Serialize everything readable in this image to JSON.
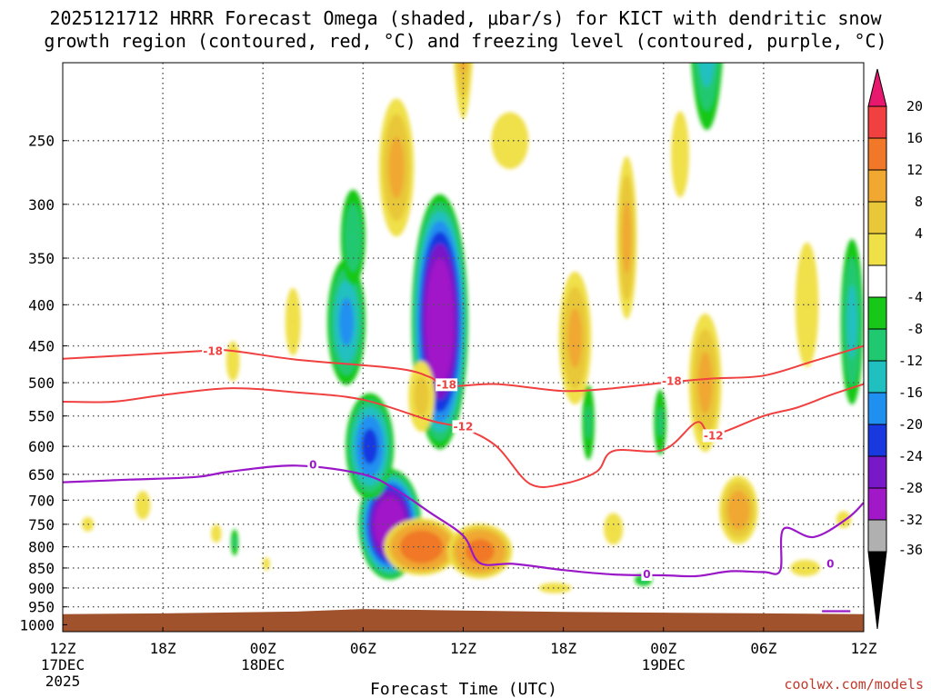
{
  "chart_data": {
    "type": "heatmap",
    "title_line1": "2025121712 HRRR Forecast Omega (shaded, μbar/s) for KICT with dendritic snow",
    "title_line2": "growth region (contoured, red, °C) and freezing level (contoured, purple, °C)",
    "xlabel": "Forecast Time (UTC)",
    "credit": "coolwx.com/models",
    "x_ticks": [
      {
        "hour": 0,
        "label": "12Z",
        "sub1": "17DEC",
        "sub2": "2025"
      },
      {
        "hour": 6,
        "label": "18Z",
        "sub1": "",
        "sub2": ""
      },
      {
        "hour": 12,
        "label": "00Z",
        "sub1": "18DEC",
        "sub2": ""
      },
      {
        "hour": 18,
        "label": "06Z",
        "sub1": "",
        "sub2": ""
      },
      {
        "hour": 24,
        "label": "12Z",
        "sub1": "",
        "sub2": ""
      },
      {
        "hour": 30,
        "label": "18Z",
        "sub1": "",
        "sub2": ""
      },
      {
        "hour": 36,
        "label": "00Z",
        "sub1": "19DEC",
        "sub2": ""
      },
      {
        "hour": 42,
        "label": "06Z",
        "sub1": "",
        "sub2": ""
      },
      {
        "hour": 48,
        "label": "12Z",
        "sub1": "",
        "sub2": ""
      }
    ],
    "xlim": [
      0,
      48
    ],
    "y_ticks": [
      250,
      300,
      350,
      400,
      450,
      500,
      550,
      600,
      650,
      700,
      750,
      800,
      850,
      900,
      950,
      1000
    ],
    "ylim_hPa": [
      200,
      1020
    ],
    "y_scale": "log-pressure",
    "grid": true,
    "colorbar": {
      "labels": [
        "20",
        "16",
        "12",
        "8",
        "4",
        "-4",
        "-8",
        "-12",
        "-16",
        "-20",
        "-24",
        "-28",
        "-32",
        "-36"
      ],
      "colors": [
        "#e8186e",
        "#f04040",
        "#f07828",
        "#f0a830",
        "#e8c838",
        "#f0e048",
        "#ffffff",
        "#18c818",
        "#20c870",
        "#20c0c0",
        "#2090f0",
        "#1838e0",
        "#7818c8",
        "#a018c8",
        "#b0b0b0",
        "#000000"
      ]
    },
    "colors": {
      "terrain": "#a0522d",
      "dgz_line": "#f04040",
      "freezing_line": "#9a18c8"
    },
    "dgz_contours": [
      {
        "name": "-18",
        "label": "-18",
        "points": [
          [
            0,
            467
          ],
          [
            4,
            462
          ],
          [
            8,
            457
          ],
          [
            10,
            456
          ],
          [
            14,
            468
          ],
          [
            20,
            480
          ],
          [
            22,
            492
          ],
          [
            23,
            505
          ],
          [
            26,
            502
          ],
          [
            30,
            512
          ],
          [
            33,
            508
          ],
          [
            36,
            500
          ],
          [
            39,
            494
          ],
          [
            42,
            490
          ],
          [
            45,
            470
          ],
          [
            48,
            450
          ]
        ]
      },
      {
        "name": "-12",
        "label": "-12",
        "points": [
          [
            0,
            528
          ],
          [
            3,
            528
          ],
          [
            6,
            518
          ],
          [
            10,
            508
          ],
          [
            14,
            514
          ],
          [
            18,
            525
          ],
          [
            22,
            557
          ],
          [
            24,
            570
          ],
          [
            26,
            600
          ],
          [
            28,
            668
          ],
          [
            30,
            668
          ],
          [
            32,
            645
          ],
          [
            33,
            608
          ],
          [
            36,
            606
          ],
          [
            38,
            560
          ],
          [
            39,
            580
          ],
          [
            42,
            550
          ],
          [
            44,
            537
          ],
          [
            46,
            518
          ],
          [
            48,
            502
          ]
        ]
      }
    ],
    "dgz_label_points": [
      {
        "text": "-18",
        "hour": 9,
        "p": 457
      },
      {
        "text": "-18",
        "hour": 23,
        "p": 503
      },
      {
        "text": "-18",
        "hour": 36.5,
        "p": 498
      },
      {
        "text": "-12",
        "hour": 24,
        "p": 567
      },
      {
        "text": "-12",
        "hour": 39,
        "p": 582
      }
    ],
    "freezing_contour": {
      "label": "0",
      "points": [
        [
          0,
          665
        ],
        [
          4,
          660
        ],
        [
          8,
          655
        ],
        [
          10,
          645
        ],
        [
          14,
          634
        ],
        [
          18,
          650
        ],
        [
          20,
          680
        ],
        [
          22,
          725
        ],
        [
          24,
          775
        ],
        [
          25,
          838
        ],
        [
          27,
          840
        ],
        [
          30,
          855
        ],
        [
          33,
          866
        ],
        [
          36,
          868
        ],
        [
          38,
          870
        ],
        [
          40,
          858
        ],
        [
          42,
          860
        ],
        [
          43,
          856
        ],
        [
          43.2,
          760
        ],
        [
          45,
          778
        ],
        [
          47,
          738
        ],
        [
          48,
          705
        ]
      ]
    },
    "freezing_label_points": [
      {
        "text": "0",
        "hour": 15,
        "p": 633
      },
      {
        "text": "0",
        "hour": 35,
        "p": 866
      },
      {
        "text": "0",
        "hour": 46,
        "p": 840
      }
    ],
    "terrain_top_hPa": [
      [
        0,
        970
      ],
      [
        6,
        968
      ],
      [
        14,
        963
      ],
      [
        18,
        956
      ],
      [
        24,
        960
      ],
      [
        30,
        964
      ],
      [
        36,
        966
      ],
      [
        42,
        968
      ],
      [
        48,
        970
      ]
    ],
    "omega_blobs": [
      {
        "hour": 19.6,
        "p": 750,
        "dh": 2.0,
        "dp": 250,
        "value": -36
      },
      {
        "hour": 18.4,
        "p": 600,
        "dh": 1.6,
        "dp": 200,
        "value": -22
      },
      {
        "hour": 17.0,
        "p": 420,
        "dh": 1.3,
        "dp": 170,
        "value": -18
      },
      {
        "hour": 17.4,
        "p": 330,
        "dh": 0.9,
        "dp": 110,
        "value": -12
      },
      {
        "hour": 22.6,
        "p": 420,
        "dh": 1.8,
        "dp": 310,
        "value": -36
      },
      {
        "hour": 38.6,
        "p": 170,
        "dh": 1.2,
        "dp": 130,
        "value": -18
      },
      {
        "hour": 47.3,
        "p": 420,
        "dh": 0.8,
        "dp": 230,
        "value": -14
      },
      {
        "hour": 31.5,
        "p": 560,
        "dh": 0.5,
        "dp": 160,
        "value": -9
      },
      {
        "hour": 35.8,
        "p": 560,
        "dh": 0.5,
        "dp": 140,
        "value": -9
      },
      {
        "hour": 10.3,
        "p": 790,
        "dh": 0.3,
        "dp": 80,
        "value": -9
      },
      {
        "hour": 34.8,
        "p": 880,
        "dh": 0.7,
        "dp": 40,
        "value": -9
      },
      {
        "hour": 21.5,
        "p": 800,
        "dh": 2.6,
        "dp": 150,
        "value": 16
      },
      {
        "hour": 25.0,
        "p": 810,
        "dh": 2.3,
        "dp": 150,
        "value": 14
      },
      {
        "hour": 20.0,
        "p": 270,
        "dh": 1.4,
        "dp": 140,
        "value": 9
      },
      {
        "hour": 21.5,
        "p": 520,
        "dh": 1.2,
        "dp": 160,
        "value": 7
      },
      {
        "hour": 24.0,
        "p": 150,
        "dh": 0.9,
        "dp": 150,
        "value": 12
      },
      {
        "hour": 30.7,
        "p": 440,
        "dh": 1.3,
        "dp": 220,
        "value": 9
      },
      {
        "hour": 33.8,
        "p": 330,
        "dh": 0.8,
        "dp": 200,
        "value": 9
      },
      {
        "hour": 38.5,
        "p": 500,
        "dh": 1.3,
        "dp": 260,
        "value": 9
      },
      {
        "hour": 40.5,
        "p": 720,
        "dh": 1.5,
        "dp": 180,
        "value": 10
      },
      {
        "hour": 26.8,
        "p": 250,
        "dh": 2.5,
        "dp": 90,
        "value": 5
      },
      {
        "hour": 37.0,
        "p": 260,
        "dh": 1.2,
        "dp": 140,
        "value": 5
      },
      {
        "hour": 33.0,
        "p": 760,
        "dh": 1.0,
        "dp": 120,
        "value": 6
      },
      {
        "hour": 44.6,
        "p": 400,
        "dh": 1.2,
        "dp": 240,
        "value": 6
      },
      {
        "hour": 13.8,
        "p": 420,
        "dh": 0.8,
        "dp": 140,
        "value": 6
      },
      {
        "hour": 10.2,
        "p": 470,
        "dh": 0.9,
        "dp": 120,
        "value": 5
      },
      {
        "hour": 4.8,
        "p": 710,
        "dh": 1.0,
        "dp": 130,
        "value": 5
      },
      {
        "hour": 1.5,
        "p": 750,
        "dh": 0.8,
        "dp": 70,
        "value": 5
      },
      {
        "hour": 9.2,
        "p": 770,
        "dh": 0.7,
        "dp": 90,
        "value": 5
      },
      {
        "hour": 12.2,
        "p": 840,
        "dh": 0.5,
        "dp": 70,
        "value": 5
      },
      {
        "hour": 29.5,
        "p": 900,
        "dh": 2.2,
        "dp": 60,
        "value": 5
      },
      {
        "hour": 44.5,
        "p": 850,
        "dh": 2.0,
        "dp": 90,
        "value": 5
      },
      {
        "hour": 46.8,
        "p": 740,
        "dh": 1.0,
        "dp": 80,
        "value": 5
      }
    ]
  }
}
